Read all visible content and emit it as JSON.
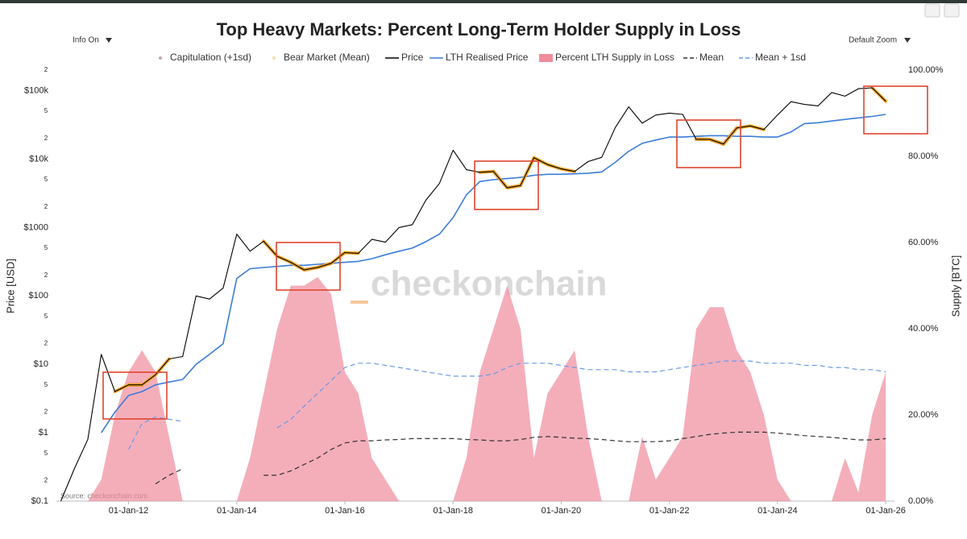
{
  "ui": {
    "info_button": "Info On",
    "zoom_button": "Default Zoom"
  },
  "chart_data": {
    "type": "line",
    "title": "Top Heavy Markets: Percent Long-Term Holder Supply in Loss",
    "ylabel": "Price [USD]",
    "y2label": "Supply [BTC]",
    "watermark": "checkonchain",
    "source": "Source: checkonchain.com",
    "yscale": "log",
    "grid": false,
    "xlim": [
      "2010-09-01",
      "2026-03-01"
    ],
    "xticks": [
      {
        "value": "2012-01-01",
        "label": "01-Jan-12"
      },
      {
        "value": "2014-01-01",
        "label": "01-Jan-14"
      },
      {
        "value": "2016-01-01",
        "label": "01-Jan-16"
      },
      {
        "value": "2018-01-01",
        "label": "01-Jan-18"
      },
      {
        "value": "2020-01-01",
        "label": "01-Jan-20"
      },
      {
        "value": "2022-01-01",
        "label": "01-Jan-22"
      },
      {
        "value": "2024-01-01",
        "label": "01-Jan-24"
      },
      {
        "value": "2026-01-01",
        "label": "01-Jan-26"
      }
    ],
    "ylim": [
      0.1,
      200000
    ],
    "yticks": [
      {
        "value": 0.1,
        "label": "$0.1"
      },
      {
        "value": 0.2,
        "label": "2"
      },
      {
        "value": 0.5,
        "label": "5"
      },
      {
        "value": 1,
        "label": "$1"
      },
      2,
      5,
      {
        "value": 10,
        "label": "$10"
      },
      {
        "value": 20,
        "label": "2"
      },
      {
        "value": 50,
        "label": "5"
      },
      {
        "value": 100,
        "label": "$100"
      },
      {
        "value": 200,
        "label": "2"
      },
      {
        "value": 500,
        "label": "5"
      },
      {
        "value": 1000,
        "label": "$1000"
      },
      {
        "value": 2000,
        "label": "2"
      },
      {
        "value": 5000,
        "label": "5"
      },
      {
        "value": 10000,
        "label": "$10k"
      },
      {
        "value": 20000,
        "label": "2"
      },
      {
        "value": 50000,
        "label": "5"
      },
      {
        "value": 100000,
        "label": "$100k"
      },
      {
        "value": 200000,
        "label": "2"
      }
    ],
    "y2lim": [
      0,
      100
    ],
    "y2ticks": [
      {
        "value": 0,
        "label": "0.00%"
      },
      {
        "value": 20,
        "label": "20.00%"
      },
      {
        "value": 40,
        "label": "40.00%"
      },
      {
        "value": 60,
        "label": "60.00%"
      },
      {
        "value": 80,
        "label": "80.00%"
      },
      {
        "value": 100,
        "label": "100.00%"
      }
    ],
    "x": [
      "2010-10-01",
      "2011-01-01",
      "2011-04-01",
      "2011-07-01",
      "2011-10-01",
      "2012-01-01",
      "2012-04-01",
      "2012-07-01",
      "2012-10-01",
      "2013-01-01",
      "2013-04-01",
      "2013-07-01",
      "2013-10-01",
      "2014-01-01",
      "2014-04-01",
      "2014-07-01",
      "2014-10-01",
      "2015-01-01",
      "2015-04-01",
      "2015-07-01",
      "2015-10-01",
      "2016-01-01",
      "2016-04-01",
      "2016-07-01",
      "2016-10-01",
      "2017-01-01",
      "2017-04-01",
      "2017-07-01",
      "2017-10-01",
      "2018-01-01",
      "2018-04-01",
      "2018-07-01",
      "2018-10-01",
      "2019-01-01",
      "2019-04-01",
      "2019-07-01",
      "2019-10-01",
      "2020-01-01",
      "2020-04-01",
      "2020-07-01",
      "2020-10-01",
      "2021-01-01",
      "2021-04-01",
      "2021-07-01",
      "2021-10-01",
      "2022-01-01",
      "2022-04-01",
      "2022-07-01",
      "2022-10-01",
      "2023-01-01",
      "2023-04-01",
      "2023-07-01",
      "2023-10-01",
      "2024-01-01",
      "2024-04-01",
      "2024-07-01",
      "2024-10-01",
      "2025-01-01",
      "2025-04-01",
      "2025-07-01",
      "2025-10-01",
      "2026-01-01"
    ],
    "series": [
      {
        "name": "Capitulation (+1sd)",
        "color": "#7a1632",
        "kind": "highlight",
        "axis": "y",
        "values": [
          null,
          null,
          null,
          null,
          null,
          5,
          5,
          null,
          null,
          null,
          null,
          null,
          null,
          null,
          null,
          null,
          null,
          310,
          240,
          260,
          300,
          null,
          null,
          null,
          null,
          null,
          null,
          null,
          null,
          null,
          null,
          null,
          6600,
          3800,
          4100,
          null,
          null,
          null,
          null,
          null,
          null,
          null,
          null,
          null,
          null,
          null,
          null,
          19500,
          19400,
          16600,
          28500,
          null,
          null,
          null,
          null,
          null,
          null,
          null,
          null,
          null,
          null,
          null
        ]
      },
      {
        "name": "Bear Market (Mean)",
        "color": "#f5a623",
        "kind": "highlight",
        "axis": "y",
        "values": [
          null,
          null,
          null,
          null,
          4,
          5,
          5,
          7,
          12,
          null,
          null,
          null,
          null,
          null,
          null,
          630,
          380,
          310,
          240,
          260,
          300,
          430,
          420,
          null,
          null,
          null,
          null,
          null,
          null,
          null,
          null,
          6400,
          6600,
          3800,
          4100,
          10500,
          8300,
          7200,
          6600,
          null,
          null,
          null,
          null,
          null,
          null,
          null,
          null,
          19500,
          19400,
          16600,
          28500,
          30500,
          27000,
          null,
          null,
          null,
          null,
          null,
          null,
          null,
          110000,
          70000
        ]
      },
      {
        "name": "Price",
        "color": "#000000",
        "kind": "line",
        "axis": "y",
        "values": [
          0.1,
          0.3,
          0.8,
          14,
          4,
          5,
          5,
          7,
          12,
          13,
          100,
          90,
          130,
          800,
          450,
          630,
          380,
          310,
          240,
          260,
          300,
          430,
          420,
          670,
          610,
          1000,
          1100,
          2500,
          4400,
          13500,
          7000,
          6400,
          6600,
          3800,
          4100,
          10500,
          8300,
          7200,
          6600,
          9200,
          10600,
          29000,
          58000,
          33500,
          44000,
          47000,
          45000,
          19500,
          19400,
          16600,
          28500,
          30500,
          27000,
          44000,
          69000,
          63000,
          60000,
          94000,
          83000,
          107000,
          110000,
          70000
        ]
      },
      {
        "name": "LTH Realised Price",
        "color": "#3b7dd8",
        "kind": "line",
        "axis": "y",
        "values": [
          null,
          null,
          null,
          1,
          2,
          3.5,
          4,
          5,
          5.5,
          6,
          10,
          14,
          20,
          180,
          250,
          260,
          270,
          280,
          280,
          290,
          300,
          310,
          320,
          350,
          400,
          450,
          500,
          620,
          800,
          1400,
          3000,
          4700,
          5000,
          5200,
          5400,
          5800,
          6000,
          6000,
          6100,
          6200,
          6500,
          9000,
          13000,
          17000,
          19000,
          21000,
          21000,
          21500,
          22000,
          22000,
          21500,
          21500,
          21000,
          21000,
          25000,
          33000,
          34000,
          36000,
          38000,
          40000,
          42000,
          45000
        ]
      },
      {
        "name": "Percent LTH Supply in Loss",
        "color": "#f08c9c",
        "kind": "area",
        "axis": "y2",
        "values": [
          0,
          0,
          0,
          5,
          20,
          30,
          35,
          30,
          15,
          0,
          0,
          0,
          0,
          0,
          10,
          25,
          40,
          50,
          50,
          52,
          48,
          30,
          25,
          10,
          5,
          0,
          0,
          0,
          0,
          0,
          10,
          30,
          40,
          50,
          40,
          10,
          25,
          30,
          35,
          15,
          0,
          0,
          0,
          15,
          5,
          10,
          15,
          40,
          45,
          45,
          35,
          30,
          20,
          5,
          0,
          0,
          0,
          0,
          10,
          2,
          20,
          30
        ]
      },
      {
        "name": "Mean",
        "color": "#333333",
        "kind": "dashed",
        "axis": "y2",
        "values": [
          null,
          null,
          null,
          null,
          null,
          null,
          null,
          4,
          6,
          7.5,
          null,
          null,
          null,
          null,
          null,
          6,
          6,
          7,
          8.5,
          10,
          12,
          13.5,
          14,
          14,
          14.2,
          14.3,
          14.5,
          14.5,
          14.5,
          14.5,
          14.3,
          14.2,
          14,
          14,
          14.3,
          14.8,
          15,
          14.8,
          14.6,
          14.5,
          14.3,
          14,
          13.8,
          13.8,
          13.8,
          14,
          14.5,
          15,
          15.5,
          15.8,
          16,
          16,
          16,
          15.8,
          15.5,
          15.2,
          15,
          14.8,
          14.5,
          14.2,
          14.2,
          14.5
        ]
      },
      {
        "name": "Mean + 1sd",
        "color": "#6a9ae8",
        "kind": "dashed",
        "axis": "y2",
        "values": [
          null,
          null,
          null,
          null,
          null,
          12,
          18,
          19.5,
          19,
          18.5,
          null,
          null,
          null,
          null,
          null,
          null,
          17,
          19,
          22,
          25,
          28,
          31,
          32,
          32,
          31.5,
          31,
          30.5,
          30,
          29.5,
          29,
          29,
          29,
          29.5,
          31,
          32,
          32,
          32,
          31.5,
          31,
          30.5,
          30.5,
          30.5,
          30,
          30,
          30,
          30.5,
          31,
          31.5,
          32,
          32.5,
          32.5,
          32.5,
          32,
          32,
          32,
          31.5,
          31.5,
          31,
          31,
          30.5,
          30.5,
          30
        ]
      }
    ]
  }
}
